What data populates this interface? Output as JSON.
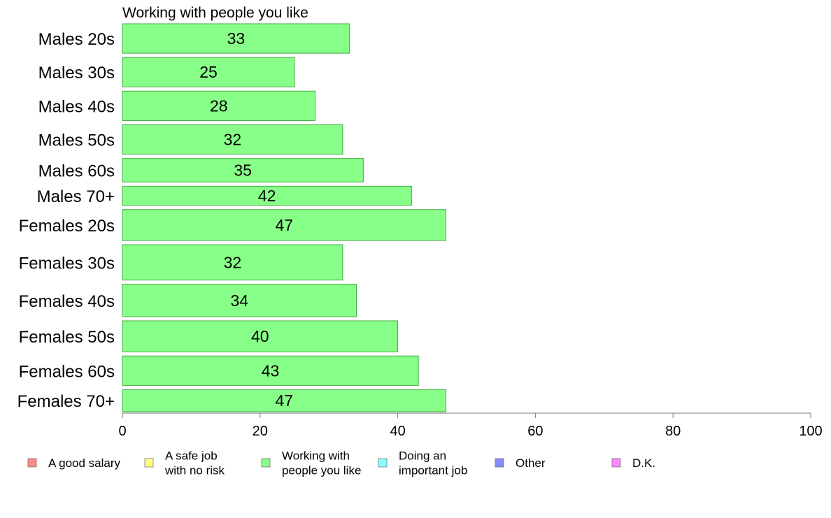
{
  "chart_data": {
    "type": "bar",
    "orientation": "horizontal",
    "title": "Working with people you like",
    "categories": [
      "Males 20s",
      "Males 30s",
      "Males 40s",
      "Males 50s",
      "Males 60s",
      "Males 70+",
      "Females 20s",
      "Females 30s",
      "Females 40s",
      "Females 50s",
      "Females 60s",
      "Females 70+"
    ],
    "values": [
      33,
      25,
      28,
      32,
      35,
      42,
      47,
      32,
      34,
      40,
      43,
      47
    ],
    "bar_weights": [
      1.0,
      1.0,
      1.0,
      1.0,
      0.8,
      0.65,
      1.05,
      1.2,
      1.1,
      1.05,
      1.0,
      0.75
    ],
    "xlim": [
      0,
      100
    ],
    "xticks": [
      0,
      20,
      40,
      60,
      80,
      100
    ],
    "grid": false,
    "bar_color": "#88ff88",
    "bar_edge_color": "#44aa44",
    "legend_position": "bottom",
    "legend": [
      {
        "lines": [
          "A good salary"
        ],
        "color": "#ff8888"
      },
      {
        "lines": [
          "A safe job",
          "with no risk"
        ],
        "color": "#ffff88"
      },
      {
        "lines": [
          "Working with",
          "people you like"
        ],
        "color": "#88ff88"
      },
      {
        "lines": [
          "Doing an",
          "important job"
        ],
        "color": "#88ffff"
      },
      {
        "lines": [
          "Other"
        ],
        "color": "#8888ff"
      },
      {
        "lines": [
          "D.K."
        ],
        "color": "#ff88ff"
      }
    ]
  }
}
